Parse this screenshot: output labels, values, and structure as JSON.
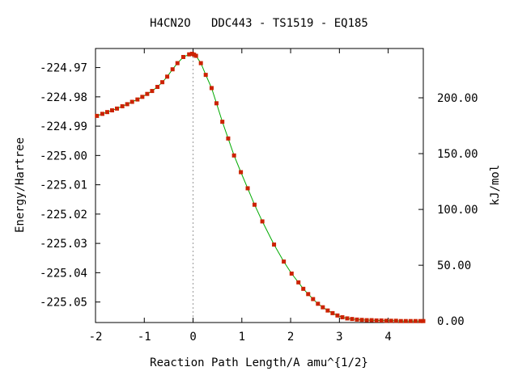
{
  "chart_data": {
    "type": "line",
    "title": "H4CN2O   DDC443 - TS1519 - EQ185",
    "xlabel": "Reaction Path Length/A amu^{1/2}",
    "ylabel": "Energy/Hartree",
    "y2label": "kJ/mol",
    "xlim": [
      -2.0,
      4.72
    ],
    "ylim": [
      -225.057,
      -224.9635
    ],
    "y2_zero_energy": -225.0565,
    "hartree_to_kjmol": 2625.5,
    "xticks": [
      "-2",
      "-1",
      "0",
      "1",
      "2",
      "3",
      "4"
    ],
    "xtick_values": [
      -2,
      -1,
      0,
      1,
      2,
      3,
      4
    ],
    "yticks": [
      "-224.97",
      "-224.98",
      "-224.99",
      "-225.00",
      "-225.01",
      "-225.02",
      "-225.03",
      "-225.04",
      "-225.05"
    ],
    "ytick_values": [
      -224.97,
      -224.98,
      -224.99,
      -225.0,
      -225.01,
      -225.02,
      -225.03,
      -225.04,
      -225.05
    ],
    "y2ticks": [
      "200.00",
      "150.00",
      "100.00",
      "50.00",
      "0.00"
    ],
    "y2tick_values": [
      200,
      150,
      100,
      50,
      0
    ],
    "grid": false,
    "ts_marker_x": 0.0,
    "line_color": "#00aa00",
    "marker_color": "#cc2200",
    "series": [
      {
        "x": [
          -1.97,
          -1.86,
          -1.76,
          -1.66,
          -1.56,
          -1.45,
          -1.35,
          -1.25,
          -1.14,
          -1.04,
          -0.94,
          -0.84,
          -0.73,
          -0.63,
          -0.53,
          -0.42,
          -0.32,
          -0.2,
          -0.08,
          -0.02,
          0.02,
          0.06,
          0.16,
          0.26,
          0.38,
          0.48,
          0.6,
          0.72,
          0.84,
          0.98,
          1.12,
          1.26,
          1.42,
          1.66,
          1.86,
          2.02,
          2.16,
          2.26,
          2.36,
          2.46,
          2.56,
          2.66,
          2.76,
          2.86,
          2.96,
          3.06,
          3.16,
          3.26,
          3.36,
          3.46,
          3.56,
          3.66,
          3.76,
          3.86,
          3.96,
          4.06,
          4.16,
          4.26,
          4.36,
          4.46,
          4.56,
          4.66,
          4.72
        ],
        "y": [
          -224.9865,
          -224.9858,
          -224.9852,
          -224.9846,
          -224.984,
          -224.9832,
          -224.9825,
          -224.9817,
          -224.9809,
          -224.98,
          -224.979,
          -224.978,
          -224.9766,
          -224.975,
          -224.9731,
          -224.9706,
          -224.9685,
          -224.9664,
          -224.9655,
          -224.9653,
          -224.9656,
          -224.966,
          -224.9685,
          -224.9725,
          -224.977,
          -224.9822,
          -224.9885,
          -224.9942,
          -225.0,
          -225.0057,
          -225.0112,
          -225.0168,
          -225.0225,
          -225.0304,
          -225.0362,
          -225.0403,
          -225.0433,
          -225.0455,
          -225.0473,
          -225.049,
          -225.0506,
          -225.0518,
          -225.0529,
          -225.0538,
          -225.0546,
          -225.0552,
          -225.0556,
          -225.0558,
          -225.056,
          -225.0561,
          -225.0562,
          -225.0562,
          -225.0563,
          -225.0563,
          -225.0564,
          -225.0564,
          -225.0564,
          -225.0565,
          -225.0565,
          -225.0565,
          -225.0565,
          -225.0565,
          -225.0565
        ]
      }
    ]
  }
}
